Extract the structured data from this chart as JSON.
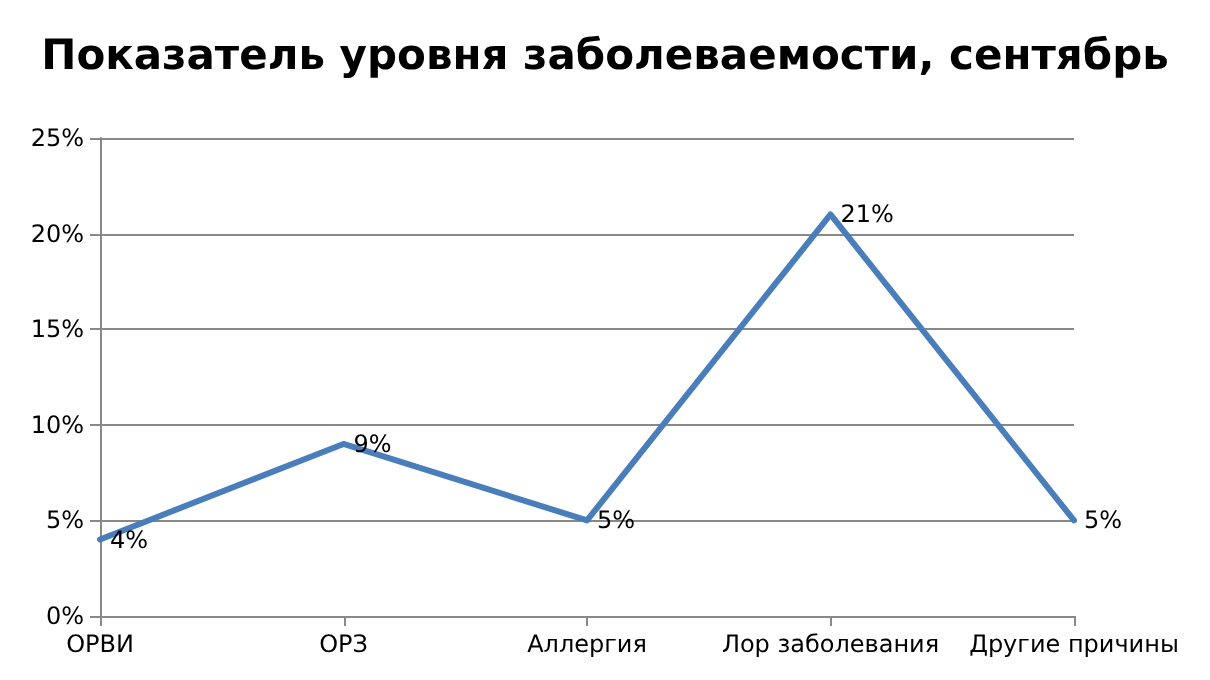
{
  "chart_data": {
    "type": "line",
    "title": "Показатель уровня заболеваемости, сентябрь",
    "categories": [
      "ОРВИ",
      "ОРЗ",
      "Аллергия",
      "Лор заболевания",
      "Другие причины"
    ],
    "values": [
      4,
      9,
      5,
      21,
      5
    ],
    "value_labels": [
      "4%",
      "9%",
      "5%",
      "21%",
      "5%"
    ],
    "color": "#4a7ebb",
    "ylim": [
      0,
      25
    ],
    "yticks": [
      {
        "value": 0,
        "label": "0%"
      },
      {
        "value": 5,
        "label": "5%"
      },
      {
        "value": 10,
        "label": "10%"
      },
      {
        "value": 15,
        "label": "15%"
      },
      {
        "value": 20,
        "label": "20%"
      },
      {
        "value": 25,
        "label": "25%"
      }
    ],
    "grid": "y",
    "marker": "none",
    "line_style": "solid"
  }
}
